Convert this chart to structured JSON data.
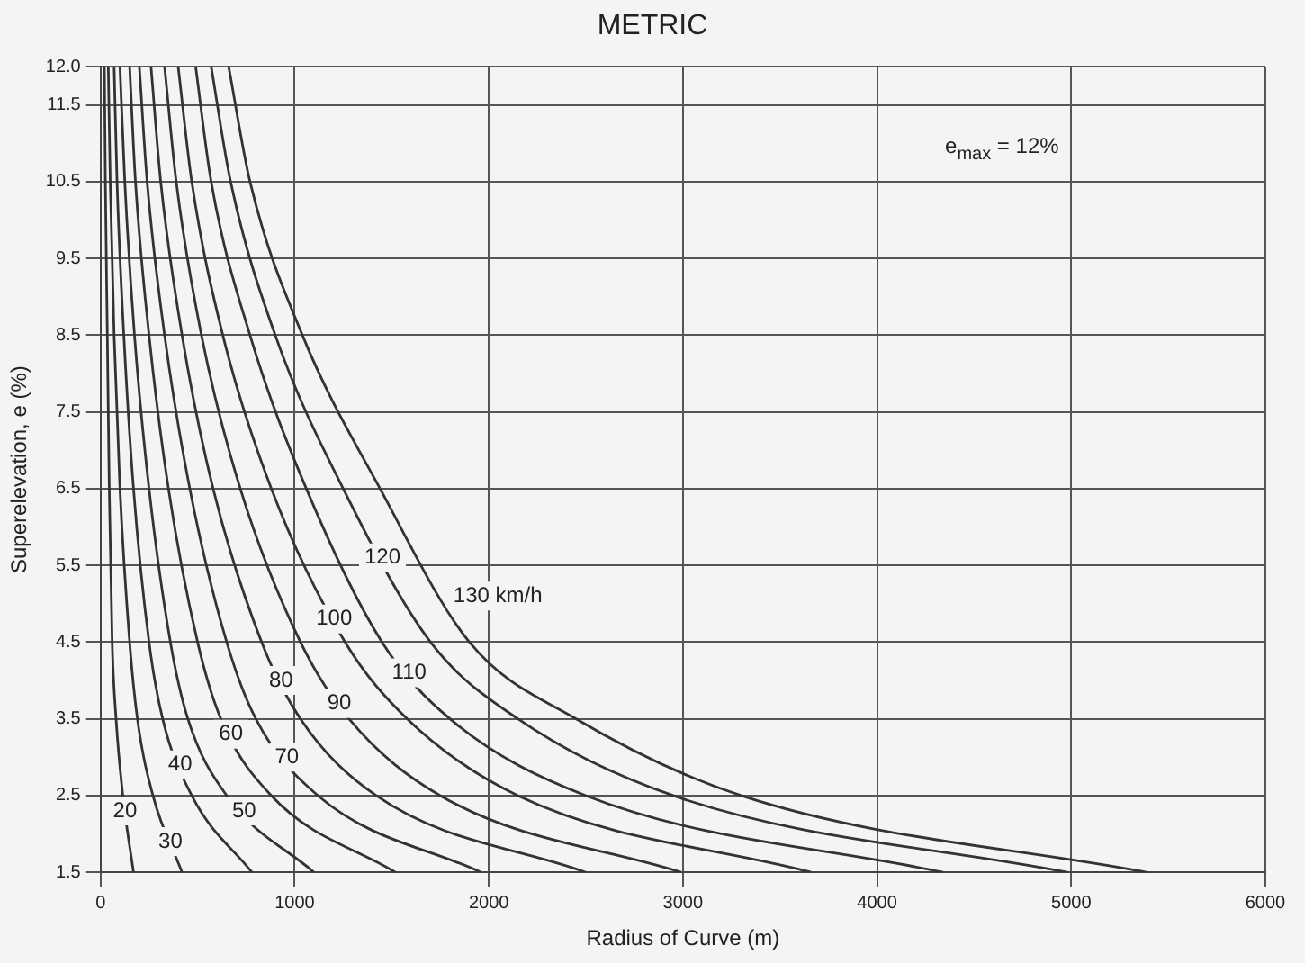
{
  "chart_data": {
    "type": "line",
    "title": "METRIC",
    "xlabel": "Radius of Curve (m)",
    "ylabel": "Superelevation, e (%)",
    "annotations": [
      "e$_{max}$ = 12%"
    ],
    "xlim": [
      0,
      6000
    ],
    "xticks": [
      0,
      1000,
      2000,
      3000,
      4000,
      5000,
      6000
    ],
    "ylim": [
      1.5,
      12
    ],
    "yticks": [
      1.5,
      2.5,
      3.5,
      4.5,
      5.5,
      6.5,
      7.5,
      8.5,
      9.5,
      10.5,
      11.5,
      {
        "value": 12,
        "label": "12.0"
      }
    ],
    "grid": true,
    "legend": false,
    "marker": "none",
    "line_style": "solid",
    "series": [
      {
        "name": "20",
        "color": "#333333",
        "x": [
          20,
          25,
          35,
          45,
          60,
          80,
          115,
          170
        ],
        "values": [
          12,
          10.5,
          8.5,
          6.5,
          4.5,
          3.5,
          2.5,
          1.5
        ]
      },
      {
        "name": "30",
        "color": "#333333",
        "x": [
          40,
          50,
          70,
          100,
          150,
          190,
          270,
          420
        ],
        "values": [
          12,
          10.5,
          8.5,
          6.5,
          4.5,
          3.5,
          2.5,
          1.5
        ]
      },
      {
        "name": "40",
        "color": "#333333",
        "x": [
          70,
          85,
          120,
          170,
          250,
          320,
          470,
          780
        ],
        "values": [
          12,
          10.5,
          8.5,
          6.5,
          4.5,
          3.5,
          2.5,
          1.5
        ]
      },
      {
        "name": "50",
        "color": "#333333",
        "x": [
          100,
          125,
          175,
          250,
          360,
          450,
          650,
          1100
        ],
        "values": [
          12,
          10.5,
          8.5,
          6.5,
          4.5,
          3.5,
          2.5,
          1.5
        ]
      },
      {
        "name": "60",
        "color": "#333333",
        "x": [
          150,
          180,
          250,
          350,
          500,
          620,
          880,
          1520
        ],
        "values": [
          12,
          10.5,
          8.5,
          6.5,
          4.5,
          3.5,
          2.5,
          1.5
        ]
      },
      {
        "name": "70",
        "color": "#333333",
        "x": [
          200,
          240,
          330,
          460,
          650,
          800,
          1120,
          1960
        ],
        "values": [
          12,
          10.5,
          8.5,
          6.5,
          4.5,
          3.5,
          2.5,
          1.5
        ]
      },
      {
        "name": "80",
        "color": "#333333",
        "x": [
          260,
          310,
          420,
          580,
          830,
          1030,
          1420,
          2500
        ],
        "values": [
          12,
          10.5,
          8.5,
          6.5,
          4.5,
          3.5,
          2.5,
          1.5
        ]
      },
      {
        "name": "90",
        "color": "#333333",
        "x": [
          330,
          390,
          520,
          720,
          1030,
          1280,
          1750,
          2990
        ],
        "values": [
          12,
          10.5,
          8.5,
          6.5,
          4.5,
          3.5,
          2.5,
          1.5
        ]
      },
      {
        "name": "100",
        "color": "#333333",
        "x": [
          400,
          470,
          630,
          880,
          1260,
          1580,
          2150,
          3660
        ],
        "values": [
          12,
          10.5,
          8.5,
          6.5,
          4.5,
          3.5,
          2.5,
          1.5
        ]
      },
      {
        "name": "110",
        "color": "#333333",
        "x": [
          490,
          570,
          770,
          1060,
          1450,
          1800,
          2500,
          4340
        ],
        "values": [
          12,
          10.5,
          8.5,
          6.5,
          4.5,
          3.5,
          2.5,
          1.5
        ]
      },
      {
        "name": "120",
        "color": "#333333",
        "x": [
          570,
          670,
          900,
          1250,
          1700,
          2150,
          2950,
          4980
        ],
        "values": [
          12,
          10.5,
          8.5,
          6.5,
          4.5,
          3.5,
          2.5,
          1.5
        ]
      },
      {
        "name": "130 km/h",
        "color": "#333333",
        "x": [
          660,
          770,
          1040,
          1440,
          1900,
          2450,
          3300,
          5390
        ],
        "values": [
          12,
          10.5,
          8.5,
          6.5,
          4.5,
          3.5,
          2.5,
          1.5
        ]
      }
    ]
  }
}
